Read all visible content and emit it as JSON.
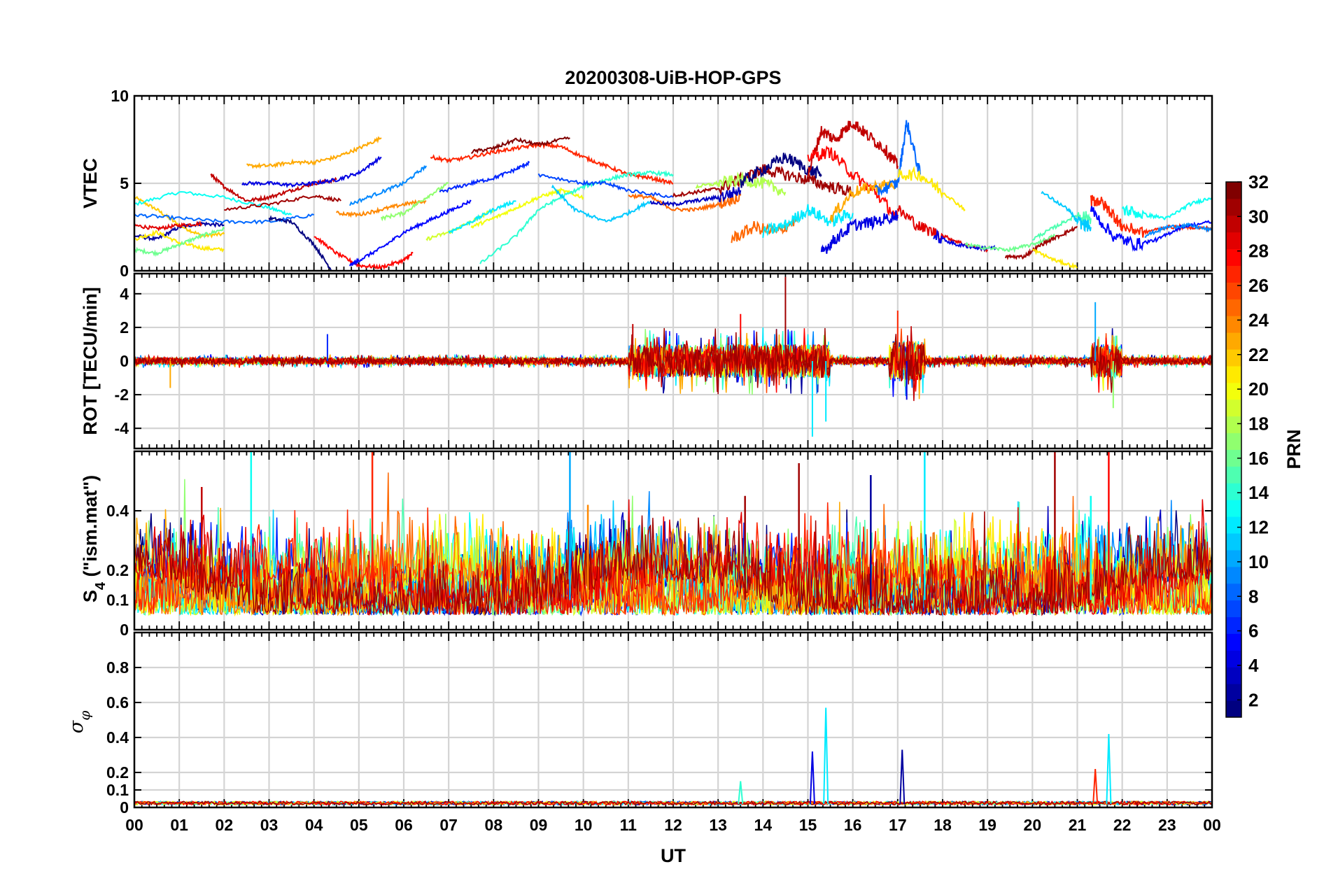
{
  "figure": {
    "title": "20200308-UiB-HOP-GPS",
    "xlabel": "UT",
    "xticks": [
      "00",
      "01",
      "02",
      "03",
      "04",
      "05",
      "06",
      "07",
      "08",
      "09",
      "10",
      "11",
      "12",
      "13",
      "14",
      "15",
      "16",
      "17",
      "18",
      "19",
      "20",
      "21",
      "22",
      "23",
      "00"
    ]
  },
  "colorbar": {
    "label": "PRN",
    "ticks": [
      "2",
      "4",
      "6",
      "8",
      "10",
      "12",
      "14",
      "16",
      "18",
      "20",
      "22",
      "24",
      "26",
      "28",
      "30",
      "32"
    ],
    "range": [
      1,
      32
    ],
    "colormap": "jet"
  },
  "panels": [
    {
      "id": "vtec",
      "ylabel": "VTEC",
      "ylim": [
        0,
        10
      ],
      "yticks": [
        "0",
        "5",
        "10"
      ]
    },
    {
      "id": "rot",
      "ylabel": "ROT [TECU/min]",
      "ylim": [
        -5.2,
        5.2
      ],
      "yticks": [
        "-4",
        "-2",
        "0",
        "2",
        "4"
      ]
    },
    {
      "id": "s4",
      "ylabel_main": "S",
      "ylabel_sub": "4",
      "ylabel_rest": " (\"ism.mat\")",
      "ylim": [
        0,
        0.6
      ],
      "yticks": [
        "0",
        "0.1",
        "0.2",
        "0.4"
      ]
    },
    {
      "id": "sigma",
      "ylabel_main": "σ",
      "ylabel_sub": "φ",
      "ylim": [
        0,
        1
      ],
      "yticks": [
        "0",
        "0.1",
        "0.2",
        "0.4",
        "0.6",
        "0.8"
      ]
    }
  ],
  "chart_data": [
    {
      "type": "line",
      "panel": "VTEC",
      "x_unit": "hours UT",
      "ylim": [
        0,
        10
      ],
      "series": [
        {
          "prn": 22,
          "x": [
            0,
            0.5,
            1,
            1.5,
            2
          ],
          "y": [
            4.2,
            3.5,
            2.6,
            2.0,
            2.1
          ]
        },
        {
          "prn": 13,
          "x": [
            0,
            1,
            2,
            3,
            3.5
          ],
          "y": [
            3.8,
            4.5,
            4.2,
            3.6,
            3.2
          ]
        },
        {
          "prn": 2,
          "x": [
            0,
            0.5,
            1,
            1.5,
            2
          ],
          "y": [
            2.0,
            1.8,
            2.5,
            2.7,
            2.6
          ]
        },
        {
          "prn": 29,
          "x": [
            0,
            0.5,
            1,
            1.5
          ],
          "y": [
            2.6,
            2.4,
            2.6,
            2.7
          ]
        },
        {
          "prn": 21,
          "x": [
            0,
            0.5,
            1,
            1.5,
            2
          ],
          "y": [
            1.8,
            2.2,
            1.6,
            1.3,
            1.2
          ]
        },
        {
          "prn": 16,
          "x": [
            0,
            0.5,
            1,
            1.5,
            2
          ],
          "y": [
            1.2,
            1.0,
            1.5,
            2.0,
            2.4
          ]
        },
        {
          "prn": 8,
          "x": [
            0,
            1,
            2,
            3,
            4
          ],
          "y": [
            3.2,
            3.0,
            2.8,
            2.8,
            3.2
          ]
        },
        {
          "prn": 30,
          "x": [
            1.7,
            2,
            2.5,
            3,
            3.5,
            4,
            4.5
          ],
          "y": [
            5.5,
            4.8,
            4.0,
            4.2,
            4.6,
            5.0,
            5.2
          ]
        },
        {
          "prn": 31,
          "x": [
            2,
            3,
            4,
            4.6
          ],
          "y": [
            3.5,
            3.8,
            4.3,
            4.0
          ]
        },
        {
          "prn": 23,
          "x": [
            2.5,
            3,
            3.5,
            4,
            4.5,
            5,
            5.5
          ],
          "y": [
            6.0,
            6.0,
            6.2,
            6.2,
            6.5,
            7.0,
            7.6
          ]
        },
        {
          "prn": 4,
          "x": [
            2.4,
            3,
            3.5,
            4,
            4.5,
            5,
            5.5
          ],
          "y": [
            5.0,
            5.0,
            4.9,
            5.0,
            5.2,
            5.6,
            6.5
          ]
        },
        {
          "prn": 1,
          "x": [
            3,
            3.5,
            4,
            4.4
          ],
          "y": [
            3.0,
            2.8,
            1.5,
            0.0
          ]
        },
        {
          "prn": 28,
          "x": [
            4,
            4.5,
            5,
            5.5,
            6,
            6.2
          ],
          "y": [
            2.0,
            1.0,
            0.3,
            0.2,
            0.6,
            1.0
          ]
        },
        {
          "prn": 5,
          "x": [
            4.8,
            5,
            5.5,
            6,
            6.5,
            7,
            7.5
          ],
          "y": [
            0.3,
            0.6,
            1.3,
            2.2,
            2.8,
            3.4,
            4.0
          ]
        },
        {
          "prn": 9,
          "x": [
            4.8,
            5.5,
            6,
            6.5
          ],
          "y": [
            3.8,
            4.5,
            5.0,
            6.0
          ]
        },
        {
          "prn": 24,
          "x": [
            4.5,
            5,
            5.5,
            6,
            6.5
          ],
          "y": [
            3.3,
            3.2,
            3.5,
            3.8,
            4.0
          ]
        },
        {
          "prn": 17,
          "x": [
            5.5,
            6,
            6.5,
            7
          ],
          "y": [
            3.0,
            3.3,
            4.2,
            5.0
          ]
        },
        {
          "prn": 19,
          "x": [
            6.5,
            7,
            7.5,
            8
          ],
          "y": [
            1.8,
            2.2,
            2.8,
            3.5
          ]
        },
        {
          "prn": 12,
          "x": [
            7,
            7.5,
            8,
            8.5
          ],
          "y": [
            2.2,
            2.8,
            3.5,
            4.0
          ]
        },
        {
          "prn": 20,
          "x": [
            7.5,
            8,
            8.5,
            9,
            9.5,
            10
          ],
          "y": [
            2.5,
            3.0,
            3.6,
            4.2,
            4.6,
            4.2
          ]
        },
        {
          "prn": 27,
          "x": [
            6.6,
            7,
            7.5,
            8,
            8.5,
            9,
            9.5,
            10,
            10.5,
            11,
            11.5,
            12
          ],
          "y": [
            6.5,
            6.3,
            6.5,
            6.8,
            7.0,
            7.2,
            7.1,
            6.5,
            6.0,
            5.5,
            5.3,
            5.0
          ]
        },
        {
          "prn": 32,
          "x": [
            7.5,
            8,
            8.5,
            9,
            9.7
          ],
          "y": [
            6.8,
            7.0,
            7.5,
            7.2,
            7.6
          ]
        },
        {
          "prn": 6,
          "x": [
            6.8,
            7.5,
            8,
            8.5,
            8.8
          ],
          "y": [
            4.5,
            5.0,
            5.3,
            5.8,
            6.2
          ]
        },
        {
          "prn": 14,
          "x": [
            7.7,
            8.5,
            9,
            9.5,
            10,
            10.5,
            11,
            11.5,
            12
          ],
          "y": [
            0.4,
            2.0,
            3.5,
            4.2,
            4.8,
            5.2,
            5.5,
            5.6,
            5.5
          ]
        },
        {
          "prn": 11,
          "x": [
            9.3,
            9.8,
            10.5,
            11,
            11.5
          ],
          "y": [
            4.8,
            3.5,
            2.8,
            3.3,
            4.0
          ]
        },
        {
          "prn": 7,
          "x": [
            9,
            10,
            10.5,
            11,
            12
          ],
          "y": [
            5.5,
            5.0,
            5.0,
            4.6,
            4.2
          ]
        },
        {
          "prn": 25,
          "x": [
            11,
            11.5,
            12,
            12.5,
            13,
            13.5
          ],
          "y": [
            4.3,
            4.2,
            3.5,
            3.5,
            3.8,
            4.3
          ]
        },
        {
          "prn": 3,
          "x": [
            11.5,
            12,
            12.5,
            13,
            13.5
          ],
          "y": [
            3.9,
            3.8,
            4.0,
            4.2,
            4.6
          ]
        },
        {
          "prn": 31,
          "x": [
            12,
            12.5,
            13,
            13.5,
            14,
            14.5,
            15,
            15.5,
            16
          ],
          "y": [
            4.3,
            4.5,
            4.7,
            5.2,
            5.8,
            5.5,
            5.2,
            4.8,
            4.5
          ]
        },
        {
          "prn": 18,
          "x": [
            12.5,
            13,
            13.5,
            14,
            14.5
          ],
          "y": [
            4.8,
            5.0,
            5.2,
            5.0,
            4.5
          ]
        },
        {
          "prn": 1,
          "x": [
            13.5,
            14,
            14.5,
            15,
            15.3
          ],
          "y": [
            5.0,
            5.8,
            6.5,
            5.8,
            5.5
          ]
        },
        {
          "prn": 25,
          "x": [
            13.3,
            13.8,
            14.3,
            14.8
          ],
          "y": [
            1.8,
            2.5,
            2.2,
            3.0
          ]
        },
        {
          "prn": 12,
          "x": [
            14,
            14.5,
            15,
            15.5,
            16
          ],
          "y": [
            2.2,
            2.6,
            3.5,
            2.8,
            3.3
          ]
        },
        {
          "prn": 30,
          "x": [
            15,
            15.3,
            15.6,
            16,
            16.3,
            16.7,
            17
          ],
          "y": [
            5.5,
            8.0,
            7.5,
            8.5,
            7.8,
            7.0,
            6.0
          ]
        },
        {
          "prn": 28,
          "x": [
            15,
            15.5,
            16,
            16.5,
            17
          ],
          "y": [
            6.5,
            6.8,
            5.5,
            4.5,
            3.0
          ]
        },
        {
          "prn": 4,
          "x": [
            15.3,
            15.6,
            16,
            16.5,
            17
          ],
          "y": [
            1.0,
            1.8,
            2.6,
            2.8,
            3.2
          ]
        },
        {
          "prn": 23,
          "x": [
            15.5,
            16,
            16.5,
            17
          ],
          "y": [
            3.0,
            4.5,
            4.8,
            5.0
          ]
        },
        {
          "prn": 8,
          "x": [
            16.5,
            17,
            17.2,
            17.5
          ],
          "y": [
            4.5,
            5.0,
            8.5,
            5.5
          ]
        },
        {
          "prn": 21,
          "x": [
            17,
            17.5,
            18,
            18.5
          ],
          "y": [
            5.5,
            5.5,
            4.5,
            3.5
          ]
        },
        {
          "prn": 29,
          "x": [
            17,
            17.5,
            18,
            18.5,
            19
          ],
          "y": [
            3.5,
            2.5,
            2.0,
            1.5,
            1.2
          ]
        },
        {
          "prn": 4,
          "x": [
            17.8,
            18.3,
            18.8,
            19.2
          ],
          "y": [
            2.0,
            1.5,
            1.3,
            1.3
          ]
        },
        {
          "prn": 16,
          "x": [
            18.5,
            19,
            19.5,
            20,
            20.5
          ],
          "y": [
            1.5,
            1.3,
            1.2,
            1.5,
            2.0
          ]
        },
        {
          "prn": 31,
          "x": [
            19.4,
            19.8,
            20.2,
            20.6,
            21
          ],
          "y": [
            0.8,
            0.8,
            1.5,
            2.0,
            2.5
          ]
        },
        {
          "prn": 21,
          "x": [
            20,
            20.5,
            21
          ],
          "y": [
            1.2,
            0.6,
            0.2
          ]
        },
        {
          "prn": 15,
          "x": [
            20,
            20.5,
            21,
            21.3
          ],
          "y": [
            1.8,
            2.5,
            3.2,
            3.0
          ]
        },
        {
          "prn": 11,
          "x": [
            20.2,
            20.8,
            21,
            21.3
          ],
          "y": [
            4.5,
            3.5,
            2.8,
            2.5
          ]
        },
        {
          "prn": 27,
          "x": [
            21.3,
            21.5,
            21.8,
            22,
            22.5,
            23,
            23.5,
            24
          ],
          "y": [
            4.0,
            4.0,
            3.2,
            2.5,
            2.2,
            2.5,
            2.5,
            2.4
          ]
        },
        {
          "prn": 5,
          "x": [
            21.3,
            21.8,
            22.3,
            22.8,
            23.3,
            24
          ],
          "y": [
            3.5,
            2.0,
            1.5,
            1.8,
            2.5,
            2.8
          ]
        },
        {
          "prn": 13,
          "x": [
            22,
            22.5,
            23,
            23.5,
            24
          ],
          "y": [
            3.5,
            3.2,
            3.0,
            3.8,
            4.2
          ]
        },
        {
          "prn": 9,
          "x": [
            22.5,
            23,
            23.5,
            24
          ],
          "y": [
            2.0,
            2.5,
            2.6,
            2.3
          ]
        }
      ]
    },
    {
      "type": "line",
      "panel": "ROT",
      "x_unit": "hours UT",
      "ylim": [
        -5.2,
        5.2
      ],
      "note_series": "noise band around 0 for all PRNs",
      "peaks": [
        {
          "prn": 23,
          "x": 0.8,
          "y": -1.6
        },
        {
          "prn": 6,
          "x": 4.3,
          "y": 1.6
        },
        {
          "prn": 30,
          "x": 11.1,
          "y": 2.2
        },
        {
          "prn": 31,
          "x": 14.5,
          "y": 5.0
        },
        {
          "prn": 12,
          "x": 15.1,
          "y": -4.5
        },
        {
          "prn": 12,
          "x": 15.4,
          "y": -3.6
        },
        {
          "prn": 28,
          "x": 13.5,
          "y": 2.8
        },
        {
          "prn": 4,
          "x": 17.2,
          "y": -2.3
        },
        {
          "prn": 27,
          "x": 17.0,
          "y": 3.0
        },
        {
          "prn": 17,
          "x": 21.8,
          "y": -2.8
        },
        {
          "prn": 10,
          "x": 21.4,
          "y": 3.5
        }
      ]
    },
    {
      "type": "line",
      "panel": "S4",
      "x_unit": "hours UT",
      "ylim": [
        0,
        0.6
      ],
      "baseline": 0.05,
      "peaks": [
        {
          "prn": 30,
          "x": 1.5,
          "y": 0.48
        },
        {
          "prn": 13,
          "x": 2.6,
          "y": 0.6
        },
        {
          "prn": 27,
          "x": 5.3,
          "y": 0.6
        },
        {
          "prn": 10,
          "x": 9.7,
          "y": 0.6
        },
        {
          "prn": 24,
          "x": 10.1,
          "y": 0.42
        },
        {
          "prn": 31,
          "x": 13.6,
          "y": 0.45
        },
        {
          "prn": 31,
          "x": 14.8,
          "y": 0.56
        },
        {
          "prn": 12,
          "x": 17.6,
          "y": 0.6
        },
        {
          "prn": 2,
          "x": 16.4,
          "y": 0.52
        },
        {
          "prn": 31,
          "x": 20.5,
          "y": 0.6
        },
        {
          "prn": 28,
          "x": 21.7,
          "y": 0.6
        },
        {
          "prn": 13,
          "x": 21.3,
          "y": 0.45
        }
      ]
    },
    {
      "type": "line",
      "panel": "sigma_phi",
      "x_unit": "hours UT",
      "ylim": [
        0,
        1
      ],
      "baseline": 0.02,
      "peaks": [
        {
          "prn": 14,
          "x": 13.5,
          "y": 0.15
        },
        {
          "prn": 4,
          "x": 15.1,
          "y": 0.32
        },
        {
          "prn": 12,
          "x": 15.4,
          "y": 0.57
        },
        {
          "prn": 2,
          "x": 17.1,
          "y": 0.33
        },
        {
          "prn": 27,
          "x": 21.4,
          "y": 0.22
        },
        {
          "prn": 12,
          "x": 21.7,
          "y": 0.42
        }
      ]
    }
  ]
}
